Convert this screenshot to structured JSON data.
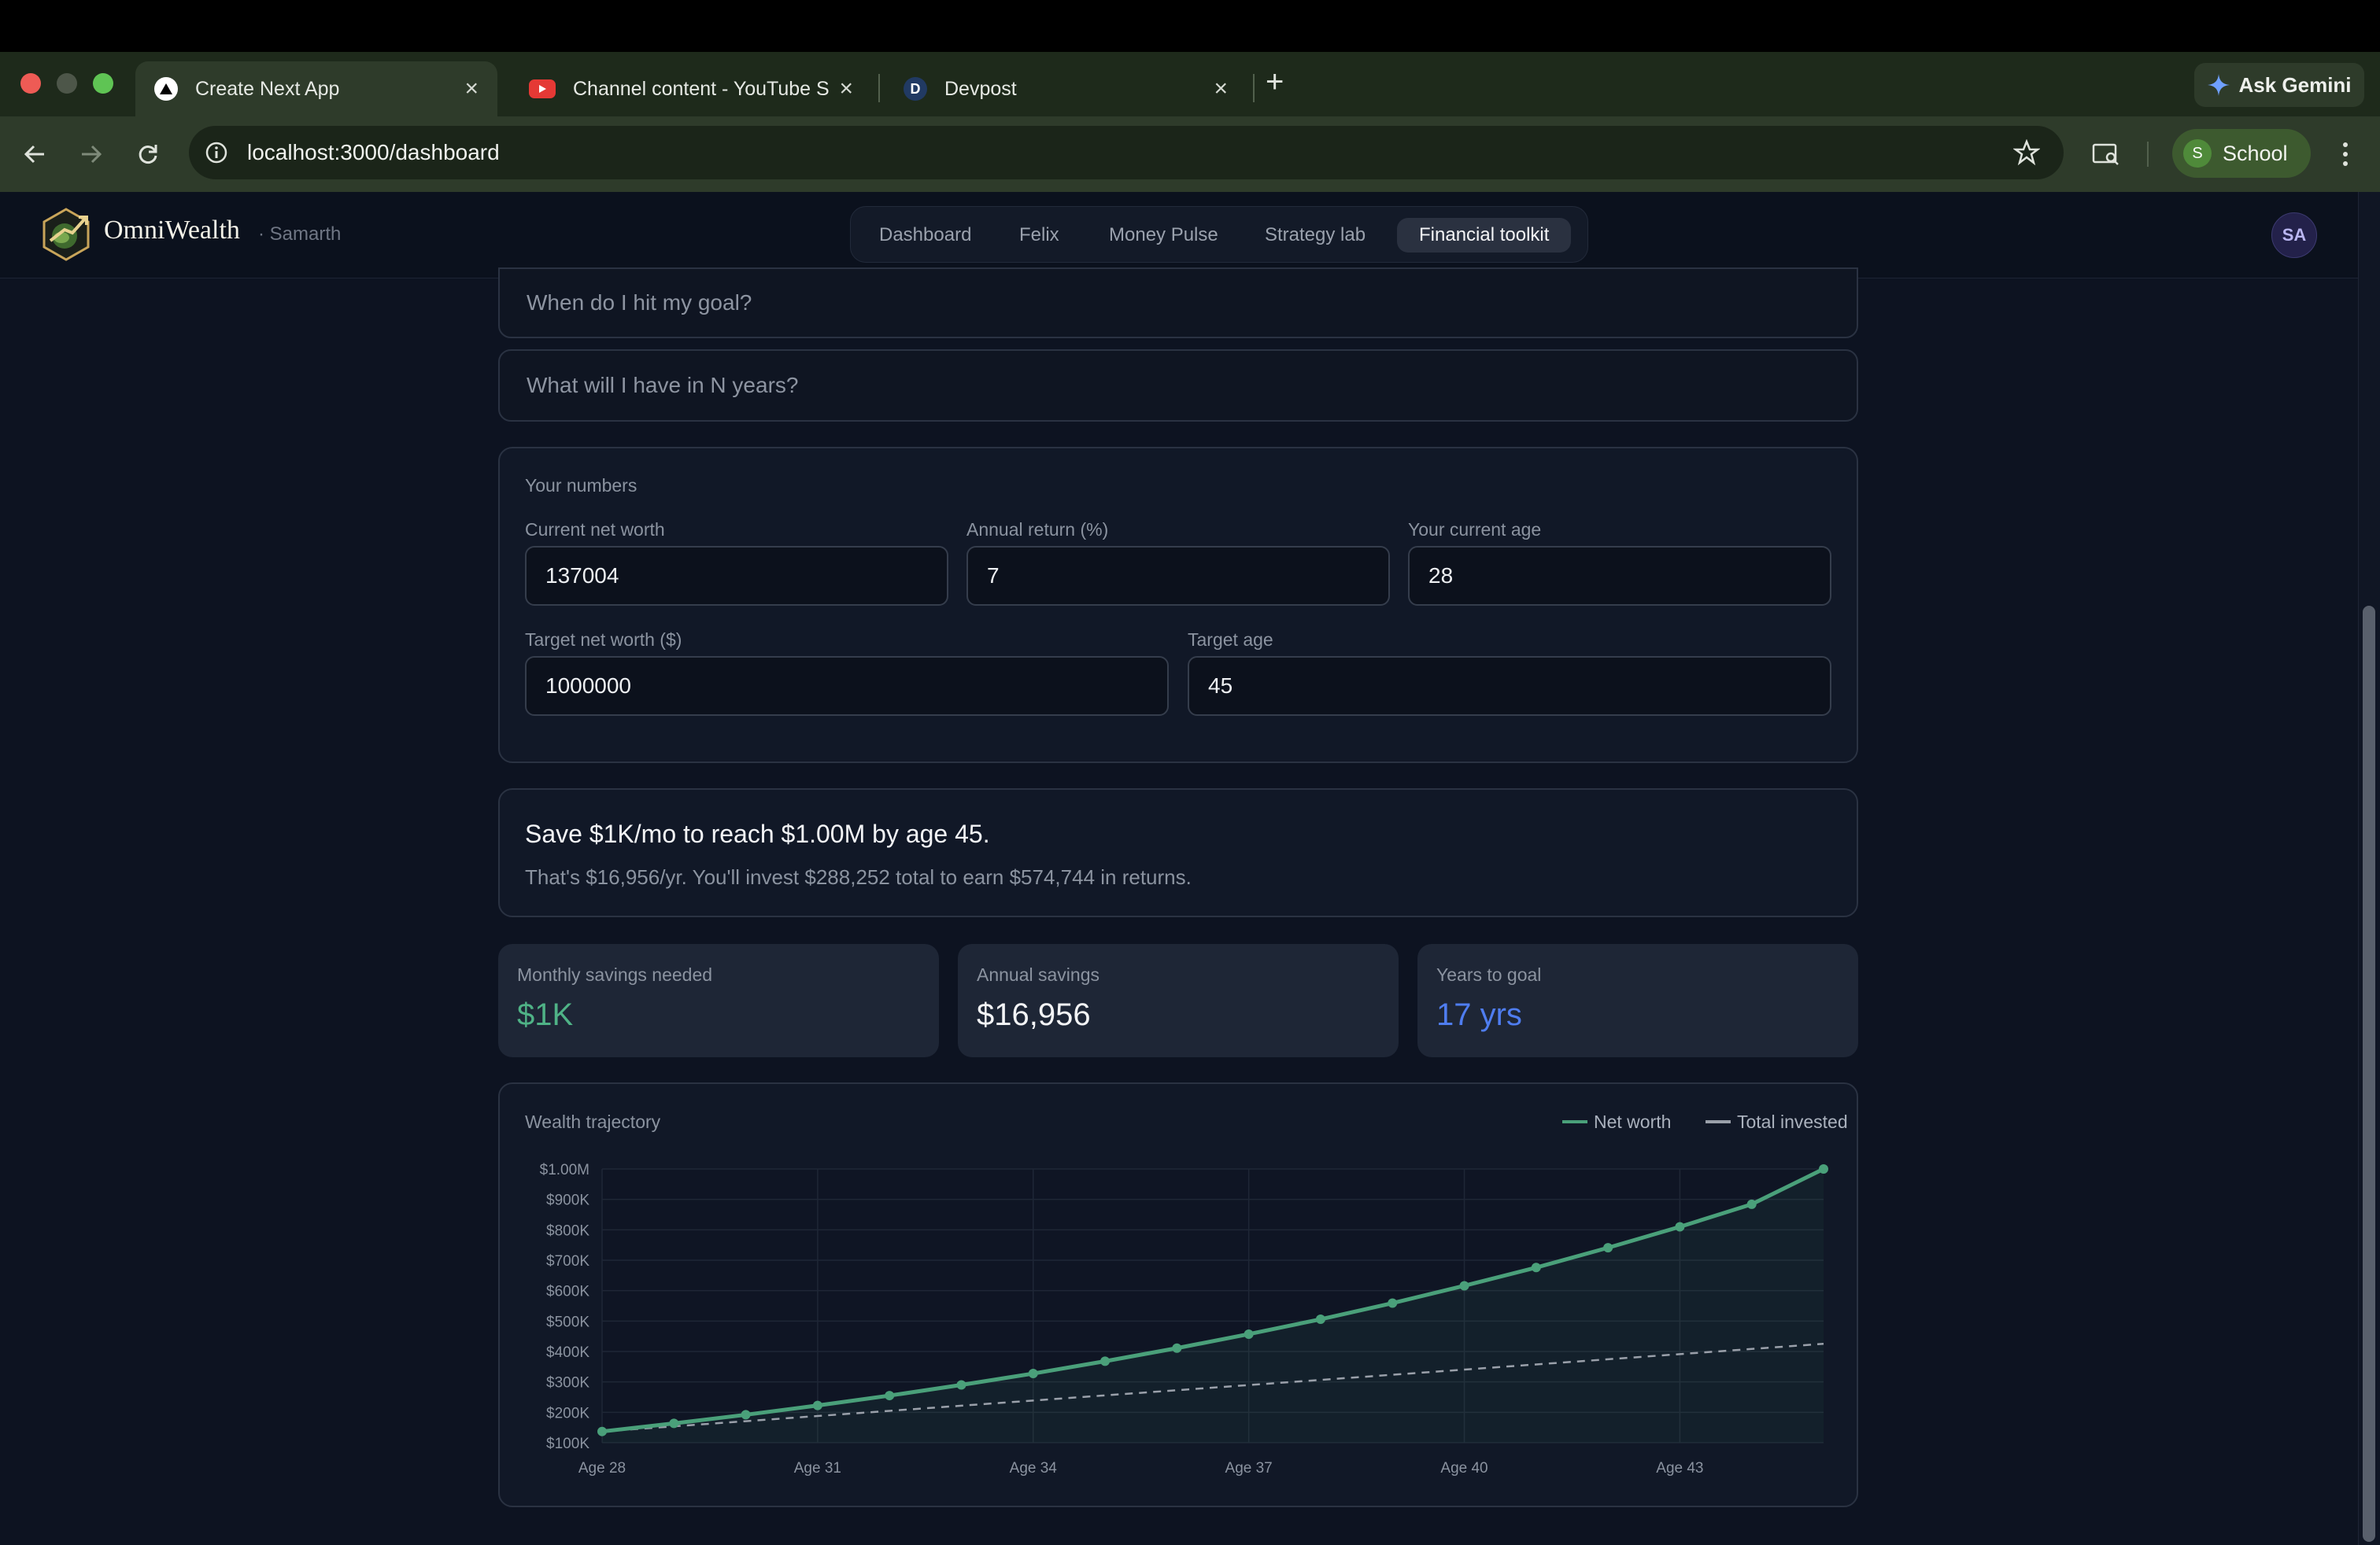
{
  "browser": {
    "tabs": [
      {
        "title": "Create Next App",
        "active": true
      },
      {
        "title": "Channel content - YouTube St",
        "active": false
      },
      {
        "title": "Devpost",
        "active": false
      }
    ],
    "favicon_letter_devpost": "D",
    "ask_gemini": "Ask Gemini",
    "url": "localhost:3000/dashboard",
    "profile": {
      "initial": "S",
      "label": "School"
    }
  },
  "header": {
    "brand": "OmniWealth",
    "user": "· Samarth",
    "nav": [
      "Dashboard",
      "Felix",
      "Money Pulse",
      "Strategy lab",
      "Financial toolkit"
    ],
    "active_nav": "Financial toolkit",
    "avatar": "SA"
  },
  "questions": {
    "goal": "When do I hit my goal?",
    "n_years": "What will I have in N years?"
  },
  "numbers": {
    "title": "Your numbers",
    "fields": [
      {
        "label": "Current net worth",
        "value": "137004"
      },
      {
        "label": "Annual return (%)",
        "value": "7"
      },
      {
        "label": "Your current age",
        "value": "28"
      },
      {
        "label": "Target net worth ($)",
        "value": "1000000"
      },
      {
        "label": "Target age",
        "value": "45"
      }
    ]
  },
  "summary": {
    "headline": "Save $1K/mo to reach $1.00M by age 45.",
    "detail": "That's $16,956/yr. You'll invest $288,252 total to earn $574,744 in returns."
  },
  "stats": [
    {
      "label": "Monthly savings needed",
      "value": "$1K",
      "color": "#4fb286"
    },
    {
      "label": "Annual savings",
      "value": "$16,956",
      "color": "#f3f4f6"
    },
    {
      "label": "Years to goal",
      "value": "17 yrs",
      "color": "#4f7df0"
    }
  ],
  "colors": {
    "net_worth": "#4aa07a",
    "total_invested": "#9aa0aa"
  },
  "chart_data": {
    "type": "line",
    "title": "Wealth trajectory",
    "legend": [
      "Net worth",
      "Total invested"
    ],
    "legend_position": "top-right",
    "x": [
      28,
      29,
      30,
      31,
      32,
      33,
      34,
      35,
      36,
      37,
      38,
      39,
      40,
      41,
      42,
      43,
      44,
      45
    ],
    "x_tick_labels": [
      "Age 28",
      "Age 31",
      "Age 34",
      "Age 37",
      "Age 40",
      "Age 43"
    ],
    "y_tick_labels": [
      "$100K",
      "$200K",
      "$300K",
      "$400K",
      "$500K",
      "$600K",
      "$700K",
      "$800K",
      "$900K",
      "$1.00M"
    ],
    "ylim": [
      100000,
      1000000
    ],
    "grid": true,
    "series": [
      {
        "name": "Net worth",
        "values": [
          137004,
          163600,
          192000,
          222500,
          255000,
          290000,
          327500,
          368000,
          411000,
          457000,
          506000,
          559000,
          616000,
          676000,
          741000,
          810000,
          884000,
          1000000
        ]
      },
      {
        "name": "Total invested",
        "values": [
          137004,
          153960,
          170916,
          187872,
          204828,
          221784,
          238740,
          255696,
          272652,
          289608,
          306564,
          323520,
          340476,
          357432,
          374388,
          391344,
          408300,
          425256
        ]
      }
    ]
  }
}
